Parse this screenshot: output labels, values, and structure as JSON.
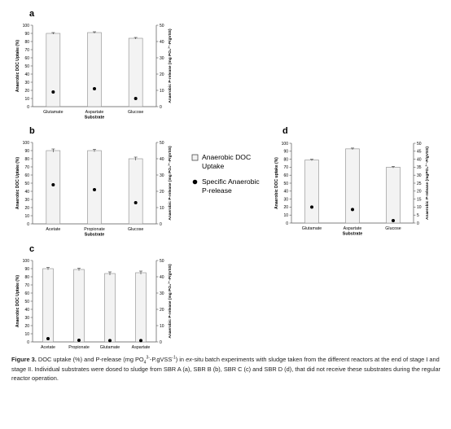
{
  "legend": {
    "items": [
      {
        "label_lines": [
          "Anaerobic DOC",
          "Uptake"
        ],
        "symbol": "bar"
      },
      {
        "label_lines": [
          "Specific Anaerobic",
          "P-release"
        ],
        "symbol": "dot"
      }
    ]
  },
  "colors": {
    "bar_fill": "#f3f3f3",
    "bar_edge": "#8a8a8a",
    "dot": "#000000",
    "axis": "#555555"
  },
  "chart_data": [
    {
      "panel": "a",
      "type": "bar",
      "categories": [
        "Glutamate",
        "Aspartate",
        "Glucose"
      ],
      "xlabel": "Substrate",
      "ylabel": "Anaerobic DOC Uptake (%)",
      "y2label": "Anaerobic P-release (mg PO₄³⁻-P/gVSS)",
      "ylim": [
        0,
        100
      ],
      "yticks": [
        0,
        10,
        20,
        30,
        40,
        50,
        60,
        70,
        80,
        90,
        100
      ],
      "y2lim": [
        0,
        50
      ],
      "y2ticks": [
        0,
        10,
        20,
        30,
        40,
        50
      ],
      "series": [
        {
          "name": "Anaerobic DOC Uptake",
          "axis": "left",
          "style": "bar",
          "values": [
            90,
            91,
            84
          ],
          "errors": [
            1,
            1,
            1
          ]
        },
        {
          "name": "Specific Anaerobic P-release",
          "axis": "right",
          "style": "dot",
          "values": [
            9,
            11,
            5
          ]
        }
      ]
    },
    {
      "panel": "b",
      "type": "bar",
      "categories": [
        "Acetate",
        "Propionate",
        "Glucose"
      ],
      "xlabel": "Substrate",
      "ylabel": "Anaerobic DOC Uptake (%)",
      "y2label": "Anaerobic P-release (mg PO₄³⁻-P/gVSS)",
      "ylim": [
        0,
        100
      ],
      "yticks": [
        0,
        10,
        20,
        30,
        40,
        50,
        60,
        70,
        80,
        90,
        100
      ],
      "y2lim": [
        0,
        50
      ],
      "y2ticks": [
        0,
        10,
        20,
        30,
        40,
        50
      ],
      "series": [
        {
          "name": "Anaerobic DOC Uptake",
          "axis": "left",
          "style": "bar",
          "values": [
            90,
            90,
            80
          ],
          "errors": [
            2,
            1.5,
            2
          ]
        },
        {
          "name": "Specific Anaerobic P-release",
          "axis": "right",
          "style": "dot",
          "values": [
            24,
            21,
            13
          ]
        }
      ]
    },
    {
      "panel": "c",
      "type": "bar",
      "categories": [
        "Acetate",
        "Propionate",
        "Glutamate",
        "Aspartate"
      ],
      "xlabel": "Substrate",
      "ylabel": "Anaerobic DOC Uptake (%)",
      "y2label": "Anaerobic P-release (mg PO₄³⁻-P/gVSS)",
      "ylim": [
        0,
        100
      ],
      "yticks": [
        0,
        10,
        20,
        30,
        40,
        50,
        60,
        70,
        80,
        90,
        100
      ],
      "y2lim": [
        0,
        50
      ],
      "y2ticks": [
        0,
        10,
        20,
        30,
        40,
        50
      ],
      "series": [
        {
          "name": "Anaerobic DOC Uptake",
          "axis": "left",
          "style": "bar",
          "values": [
            90,
            89,
            84,
            85
          ],
          "errors": [
            1.5,
            1.5,
            2,
            2
          ]
        },
        {
          "name": "Specific Anaerobic P-release",
          "axis": "right",
          "style": "dot",
          "values": [
            2,
            1,
            0.8,
            0.8
          ]
        }
      ]
    },
    {
      "panel": "d",
      "type": "bar",
      "categories": [
        "Glutamate",
        "Aspartate",
        "Glucose"
      ],
      "xlabel": "Substrate",
      "ylabel": "Anaerobic DOC uptake (%)",
      "y2label": "Anaerobic P-release (mgPO₄³⁻-P/gVSS)",
      "ylim": [
        0,
        100
      ],
      "yticks": [
        0,
        10,
        20,
        30,
        40,
        50,
        60,
        70,
        80,
        90,
        100
      ],
      "y2lim": [
        0,
        50
      ],
      "y2ticks": [
        0,
        5,
        10,
        15,
        20,
        25,
        30,
        35,
        40,
        45,
        50
      ],
      "series": [
        {
          "name": "Anaerobic DOC Uptake",
          "axis": "left",
          "style": "bar",
          "values": [
            79,
            93,
            70
          ],
          "errors": [
            1,
            1,
            1
          ]
        },
        {
          "name": "Specific Anaerobic P-release",
          "axis": "right",
          "style": "dot",
          "values": [
            10,
            8.5,
            1.5
          ]
        }
      ]
    }
  ],
  "caption": {
    "figure_label": "Figure 3.",
    "text_1": " DOC uptake (%) and P-release (mg PO",
    "sub_1": "4",
    "sup_1": "3-",
    "text_2": "-P.gVSS",
    "sup_2": "-1",
    "text_3": ") in ",
    "italic": "ex",
    "text_4": "-situ batch experiments with sludge taken from the different reactors at the end of stage I and stage II. Individual substrates were dosed to sludge from SBR A (a), SBR B (b), SBR C (c) and SBR D (d), that did not receive these substrates during the regular reactor operation."
  }
}
